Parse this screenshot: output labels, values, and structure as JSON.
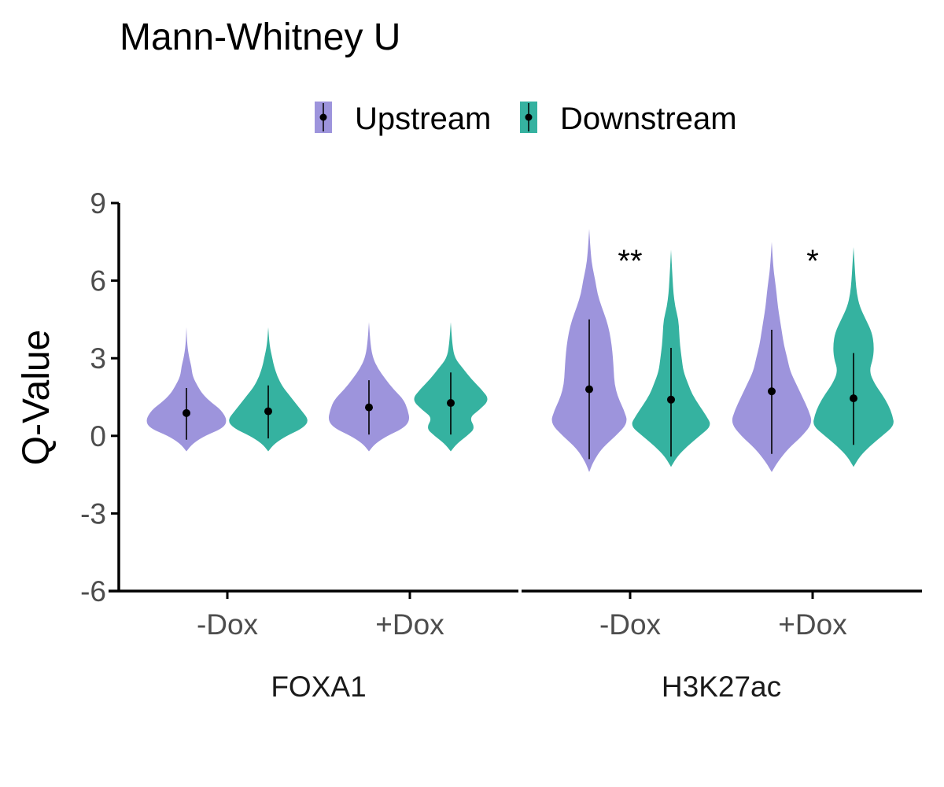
{
  "chart_data": {
    "type": "violin",
    "title": "Mann-Whitney U",
    "ylabel": "Q-Value",
    "xlabel": "",
    "ylim": [
      -6,
      9
    ],
    "yticks": [
      9,
      6,
      3,
      0,
      -3,
      -6
    ],
    "legend": {
      "placement": "top",
      "entries": [
        {
          "name": "Upstream",
          "color": "#9d94dc"
        },
        {
          "name": "Downstream",
          "color": "#35b2a0"
        }
      ]
    },
    "facets": [
      {
        "label": "FOXA1",
        "groups": [
          {
            "label": "-Dox",
            "significance": "",
            "violins": [
              {
                "series": "Upstream",
                "median": 0.88,
                "lower": -0.15,
                "upper": 1.85,
                "min": -0.6,
                "max": 4.2,
                "profile": [
                  [
                    -0.6,
                    0
                  ],
                  [
                    -0.3,
                    0.15
                  ],
                  [
                    0,
                    0.45
                  ],
                  [
                    0.3,
                    0.9
                  ],
                  [
                    0.6,
                    1.0
                  ],
                  [
                    1.0,
                    0.85
                  ],
                  [
                    1.3,
                    0.6
                  ],
                  [
                    1.6,
                    0.4
                  ],
                  [
                    1.9,
                    0.28
                  ],
                  [
                    2.3,
                    0.15
                  ],
                  [
                    2.7,
                    0.12
                  ],
                  [
                    3.0,
                    0.07
                  ],
                  [
                    3.5,
                    0.02
                  ],
                  [
                    4.2,
                    0
                  ]
                ]
              },
              {
                "series": "Downstream",
                "median": 0.95,
                "lower": -0.1,
                "upper": 1.95,
                "min": -0.6,
                "max": 4.2,
                "profile": [
                  [
                    -0.6,
                    0
                  ],
                  [
                    -0.3,
                    0.15
                  ],
                  [
                    0,
                    0.45
                  ],
                  [
                    0.3,
                    0.85
                  ],
                  [
                    0.6,
                    1.0
                  ],
                  [
                    1.0,
                    0.8
                  ],
                  [
                    1.3,
                    0.65
                  ],
                  [
                    1.6,
                    0.5
                  ],
                  [
                    1.9,
                    0.35
                  ],
                  [
                    2.3,
                    0.22
                  ],
                  [
                    2.7,
                    0.14
                  ],
                  [
                    3.0,
                    0.1
                  ],
                  [
                    3.5,
                    0.03
                  ],
                  [
                    4.2,
                    0
                  ]
                ]
              }
            ]
          },
          {
            "label": "+Dox",
            "significance": "",
            "violins": [
              {
                "series": "Upstream",
                "median": 1.1,
                "lower": 0.05,
                "upper": 2.15,
                "min": -0.6,
                "max": 4.4,
                "profile": [
                  [
                    -0.6,
                    0
                  ],
                  [
                    -0.3,
                    0.15
                  ],
                  [
                    0,
                    0.45
                  ],
                  [
                    0.3,
                    0.85
                  ],
                  [
                    0.6,
                    1.0
                  ],
                  [
                    1.0,
                    0.95
                  ],
                  [
                    1.4,
                    0.85
                  ],
                  [
                    1.8,
                    0.6
                  ],
                  [
                    2.2,
                    0.4
                  ],
                  [
                    2.6,
                    0.22
                  ],
                  [
                    3.0,
                    0.1
                  ],
                  [
                    3.5,
                    0.04
                  ],
                  [
                    4.4,
                    0
                  ]
                ]
              },
              {
                "series": "Downstream",
                "median": 1.27,
                "lower": 0.05,
                "upper": 2.45,
                "min": -0.6,
                "max": 4.4,
                "profile": [
                  [
                    -0.6,
                    0
                  ],
                  [
                    -0.3,
                    0.15
                  ],
                  [
                    0,
                    0.4
                  ],
                  [
                    0.3,
                    0.6
                  ],
                  [
                    0.7,
                    0.45
                  ],
                  [
                    1.0,
                    0.7
                  ],
                  [
                    1.4,
                    0.95
                  ],
                  [
                    1.8,
                    0.75
                  ],
                  [
                    2.2,
                    0.5
                  ],
                  [
                    2.6,
                    0.3
                  ],
                  [
                    3.0,
                    0.1
                  ],
                  [
                    3.5,
                    0.04
                  ],
                  [
                    4.4,
                    0
                  ]
                ]
              }
            ]
          }
        ]
      },
      {
        "label": "H3K27ac",
        "groups": [
          {
            "label": "-Dox",
            "significance": "**",
            "violins": [
              {
                "series": "Upstream",
                "median": 1.8,
                "lower": -0.9,
                "upper": 4.5,
                "min": -1.4,
                "max": 8.0,
                "profile": [
                  [
                    -1.4,
                    0
                  ],
                  [
                    -1.0,
                    0.1
                  ],
                  [
                    -0.5,
                    0.3
                  ],
                  [
                    0,
                    0.65
                  ],
                  [
                    0.5,
                    0.95
                  ],
                  [
                    1.0,
                    0.85
                  ],
                  [
                    1.5,
                    0.7
                  ],
                  [
                    2.0,
                    0.62
                  ],
                  [
                    2.5,
                    0.6
                  ],
                  [
                    3.0,
                    0.58
                  ],
                  [
                    3.5,
                    0.55
                  ],
                  [
                    4.0,
                    0.5
                  ],
                  [
                    4.5,
                    0.42
                  ],
                  [
                    5.0,
                    0.3
                  ],
                  [
                    5.5,
                    0.2
                  ],
                  [
                    6.0,
                    0.15
                  ],
                  [
                    6.5,
                    0.08
                  ],
                  [
                    7.0,
                    0.04
                  ],
                  [
                    8.0,
                    0
                  ]
                ]
              },
              {
                "series": "Downstream",
                "median": 1.4,
                "lower": -0.8,
                "upper": 3.4,
                "min": -1.2,
                "max": 7.2,
                "profile": [
                  [
                    -1.2,
                    0
                  ],
                  [
                    -0.8,
                    0.15
                  ],
                  [
                    -0.4,
                    0.4
                  ],
                  [
                    0,
                    0.7
                  ],
                  [
                    0.4,
                    1.0
                  ],
                  [
                    0.8,
                    0.85
                  ],
                  [
                    1.2,
                    0.68
                  ],
                  [
                    1.6,
                    0.52
                  ],
                  [
                    2.0,
                    0.42
                  ],
                  [
                    2.5,
                    0.3
                  ],
                  [
                    3.0,
                    0.26
                  ],
                  [
                    3.5,
                    0.22
                  ],
                  [
                    4.0,
                    0.2
                  ],
                  [
                    4.5,
                    0.18
                  ],
                  [
                    5.0,
                    0.1
                  ],
                  [
                    5.5,
                    0.06
                  ],
                  [
                    6.0,
                    0.04
                  ],
                  [
                    7.2,
                    0
                  ]
                ]
              }
            ]
          },
          {
            "label": "+Dox",
            "significance": "*",
            "violins": [
              {
                "series": "Upstream",
                "median": 1.72,
                "lower": -0.7,
                "upper": 4.1,
                "min": -1.4,
                "max": 7.5,
                "profile": [
                  [
                    -1.4,
                    0
                  ],
                  [
                    -1.0,
                    0.15
                  ],
                  [
                    -0.5,
                    0.4
                  ],
                  [
                    0,
                    0.75
                  ],
                  [
                    0.5,
                    1.0
                  ],
                  [
                    1.0,
                    0.9
                  ],
                  [
                    1.5,
                    0.75
                  ],
                  [
                    2.0,
                    0.6
                  ],
                  [
                    2.5,
                    0.45
                  ],
                  [
                    3.0,
                    0.38
                  ],
                  [
                    3.5,
                    0.3
                  ],
                  [
                    4.0,
                    0.25
                  ],
                  [
                    4.5,
                    0.2
                  ],
                  [
                    5.0,
                    0.15
                  ],
                  [
                    5.5,
                    0.12
                  ],
                  [
                    6.0,
                    0.08
                  ],
                  [
                    6.5,
                    0.04
                  ],
                  [
                    7.5,
                    0
                  ]
                ]
              },
              {
                "series": "Downstream",
                "median": 1.45,
                "lower": -0.35,
                "upper": 3.2,
                "min": -1.2,
                "max": 7.3,
                "profile": [
                  [
                    -1.2,
                    0
                  ],
                  [
                    -0.8,
                    0.15
                  ],
                  [
                    -0.4,
                    0.4
                  ],
                  [
                    0,
                    0.7
                  ],
                  [
                    0.4,
                    1.0
                  ],
                  [
                    0.8,
                    0.95
                  ],
                  [
                    1.2,
                    0.85
                  ],
                  [
                    1.6,
                    0.7
                  ],
                  [
                    2.0,
                    0.52
                  ],
                  [
                    2.5,
                    0.38
                  ],
                  [
                    3.0,
                    0.48
                  ],
                  [
                    3.5,
                    0.5
                  ],
                  [
                    4.0,
                    0.45
                  ],
                  [
                    4.5,
                    0.3
                  ],
                  [
                    5.0,
                    0.15
                  ],
                  [
                    5.5,
                    0.08
                  ],
                  [
                    6.0,
                    0.05
                  ],
                  [
                    6.5,
                    0.03
                  ],
                  [
                    7.3,
                    0
                  ]
                ]
              }
            ]
          }
        ]
      }
    ]
  }
}
